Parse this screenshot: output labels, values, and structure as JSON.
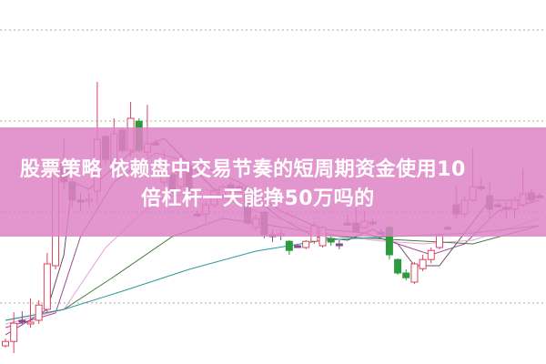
{
  "title": {
    "line1": "股票策略 依赖盘中交易节奏的短周期资金使用10",
    "line2": "倍杠杆一天能挣50万吗的"
  },
  "colors": {
    "up": "#d8435e",
    "down": "#7a6c6c",
    "down_green": "#2e9a3e",
    "doji": "#8a4a8a",
    "banner": "#de82c4",
    "grid": "#aaaaaa"
  },
  "chart_data": {
    "type": "candlestick",
    "title": "",
    "xlabel": "",
    "ylabel": "",
    "grid": true,
    "legend": "none",
    "candles_ohlc": [
      [
        5,
        6.2,
        7,
        4.5
      ],
      [
        6.2,
        11.2,
        14.2,
        3
      ],
      [
        12,
        12,
        14.5,
        11
      ],
      [
        11,
        11.5,
        18,
        10
      ],
      [
        12,
        16.2,
        17.5,
        11
      ],
      [
        15,
        27.5,
        30.5,
        14
      ],
      [
        27,
        52.5,
        53.7,
        26
      ],
      [
        55,
        50,
        62,
        48
      ],
      [
        50,
        45,
        51,
        43
      ],
      [
        45,
        45,
        47,
        42
      ],
      [
        45,
        45.2,
        47,
        43
      ],
      [
        47.5,
        61.7,
        77.5,
        43.7
      ],
      [
        62.5,
        56.2,
        63,
        55
      ],
      [
        55,
        63.2,
        67.5,
        54
      ],
      [
        64.2,
        58.7,
        65,
        58
      ],
      [
        58.7,
        67.5,
        72,
        57
      ],
      [
        66.7,
        58.7,
        67.5,
        58
      ],
      [
        58.2,
        60.5,
        71.2,
        57
      ],
      [
        60.7,
        60.7,
        61.5,
        60
      ],
      [
        50,
        55,
        58.7,
        49
      ],
      [
        52,
        47.5,
        55,
        47
      ],
      [
        48.7,
        53.7,
        57.5,
        47
      ],
      [
        54.2,
        47.5,
        55,
        47
      ],
      [
        41.2,
        41.2,
        42,
        40.5
      ],
      [
        41.2,
        43.7,
        44.5,
        38.7
      ],
      [
        43.7,
        47.5,
        48,
        43
      ],
      [
        46.2,
        48.7,
        49.5,
        45
      ],
      [
        49.2,
        48,
        50,
        47
      ],
      [
        48.7,
        48.7,
        49.5,
        48
      ],
      [
        48.2,
        38.7,
        49,
        38.2
      ],
      [
        37.5,
        40,
        41,
        36.5
      ],
      [
        41.7,
        35.5,
        42,
        34.5
      ],
      [
        35.5,
        35.5,
        37,
        33.5
      ],
      [
        35.5,
        35.7,
        37,
        34
      ],
      [
        33.7,
        31.2,
        34,
        30
      ],
      [
        32.5,
        32.5,
        33,
        32
      ],
      [
        32,
        33.7,
        34,
        31.5
      ],
      [
        33.7,
        38,
        39,
        33
      ],
      [
        32.5,
        37.5,
        38,
        32
      ],
      [
        34.5,
        33.5,
        35,
        32.5
      ],
      [
        33,
        33,
        34,
        31.5
      ],
      [
        38.7,
        38.7,
        41,
        38
      ],
      [
        38.7,
        36.2,
        43,
        36
      ],
      [
        37.5,
        39.2,
        42,
        37
      ],
      [
        39,
        38.5,
        40,
        38
      ],
      [
        36.2,
        36.2,
        37,
        35.5
      ],
      [
        37.5,
        30,
        38,
        28.7
      ],
      [
        28.7,
        25,
        29,
        24.5
      ],
      [
        25,
        23.7,
        26,
        23
      ],
      [
        22.5,
        27.5,
        28,
        22
      ],
      [
        26.2,
        28.7,
        30,
        25.5
      ],
      [
        28.7,
        31.2,
        32,
        27.7
      ],
      [
        32,
        35.5,
        36,
        31.5
      ],
      [
        37.5,
        37.5,
        38,
        37
      ],
      [
        43.7,
        41.2,
        48.7,
        40
      ],
      [
        41.2,
        45,
        46,
        40.5
      ],
      [
        45,
        48.7,
        59.5,
        44.5
      ],
      [
        48.7,
        48.7,
        51.2,
        47.5
      ],
      [
        46.2,
        42.5,
        50,
        40
      ],
      [
        43.7,
        43.7,
        44.5,
        43
      ],
      [
        43,
        43,
        44.5,
        40
      ],
      [
        42.5,
        45,
        46,
        40
      ],
      [
        43.7,
        46.7,
        53.7,
        43
      ],
      [
        47,
        45,
        48,
        44
      ],
      [
        46.2,
        46.2,
        47,
        45.5
      ]
    ],
    "green_down_candles": [
      16,
      34,
      39,
      46,
      47,
      48
    ],
    "moving_averages": [
      {
        "color": "#6b4a6e",
        "points": [
          [
            0,
            8
          ],
          [
            5,
            15
          ],
          [
            7,
            30
          ],
          [
            8,
            50
          ],
          [
            10,
            48
          ],
          [
            12,
            52
          ],
          [
            15,
            58
          ],
          [
            19,
            62
          ],
          [
            22,
            55
          ],
          [
            25,
            48
          ],
          [
            29,
            47
          ],
          [
            33,
            40
          ],
          [
            37,
            35
          ],
          [
            41,
            34
          ],
          [
            44,
            37
          ],
          [
            47,
            33
          ],
          [
            49,
            27
          ],
          [
            52,
            27
          ],
          [
            55,
            36
          ],
          [
            58,
            45
          ],
          [
            61,
            45
          ],
          [
            64,
            46
          ]
        ]
      },
      {
        "color": "#a04a90",
        "points": [
          [
            0,
            10
          ],
          [
            6,
            14
          ],
          [
            9,
            35
          ],
          [
            13,
            50
          ],
          [
            18,
            58
          ],
          [
            23,
            55
          ],
          [
            28,
            50
          ],
          [
            33,
            42
          ],
          [
            38,
            37
          ],
          [
            43,
            36
          ],
          [
            47,
            33
          ],
          [
            51,
            30
          ],
          [
            55,
            33
          ],
          [
            59,
            42
          ],
          [
            64,
            45
          ]
        ]
      },
      {
        "color": "#e8a0e0",
        "points": [
          [
            0,
            11
          ],
          [
            7,
            15
          ],
          [
            12,
            32
          ],
          [
            18,
            45
          ],
          [
            24,
            48
          ],
          [
            30,
            42
          ],
          [
            38,
            36
          ],
          [
            44,
            34
          ],
          [
            50,
            33
          ],
          [
            56,
            34
          ],
          [
            64,
            40
          ]
        ]
      },
      {
        "color": "#4a7a3a",
        "points": [
          [
            0,
            12
          ],
          [
            7,
            15
          ],
          [
            13,
            24
          ],
          [
            20,
            35
          ],
          [
            26,
            40
          ],
          [
            32,
            38
          ],
          [
            40,
            35
          ],
          [
            48,
            34
          ],
          [
            56,
            33
          ],
          [
            64,
            38
          ]
        ]
      },
      {
        "color": "#2a9a9a",
        "points": [
          [
            0,
            12
          ],
          [
            7,
            15
          ],
          [
            14,
            20
          ],
          [
            22,
            26
          ],
          [
            30,
            31
          ],
          [
            38,
            34
          ],
          [
            46,
            35
          ],
          [
            56,
            36
          ],
          [
            64,
            38
          ]
        ]
      }
    ]
  }
}
